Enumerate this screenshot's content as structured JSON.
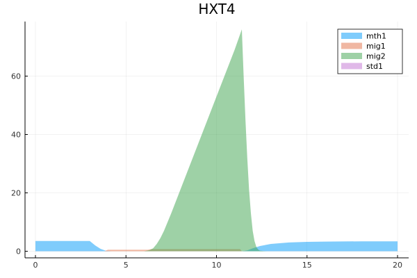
{
  "chart_data": {
    "type": "area",
    "title": "HXT4",
    "xlabel": "",
    "ylabel": "",
    "xlim": [
      0,
      20
    ],
    "ylim": [
      -1,
      78
    ],
    "xticks": [
      0,
      5,
      10,
      15,
      20
    ],
    "yticks": [
      0,
      20,
      40,
      60
    ],
    "grid": true,
    "legend_position": "top-right",
    "series": [
      {
        "name": "mth1",
        "color": "#009AF9",
        "x": [
          0,
          3.0,
          3.1,
          3.3,
          3.6,
          3.9,
          4.2,
          11.4,
          11.7,
          12.0,
          12.4,
          13.0,
          14.0,
          15.0,
          16.0,
          17.0,
          18.0,
          20.0
        ],
        "y": [
          3.5,
          3.5,
          3.0,
          2.0,
          0.8,
          0.15,
          0.0,
          0.0,
          0.3,
          1.0,
          1.8,
          2.5,
          3.0,
          3.2,
          3.3,
          3.35,
          3.4,
          3.4
        ]
      },
      {
        "name": "mig1",
        "color": "#E26F46",
        "x": [
          0,
          3.8,
          4.0,
          6.2,
          6.4,
          11.3,
          11.4,
          20.0
        ],
        "y": [
          0,
          0,
          0.5,
          0.5,
          0.7,
          0.7,
          0,
          0
        ]
      },
      {
        "name": "mig2",
        "color": "#3DA44D",
        "x": [
          0,
          6.0,
          6.3,
          6.5,
          6.7,
          6.9,
          7.1,
          7.3,
          7.5,
          8.0,
          9.0,
          10.0,
          11.0,
          11.4,
          11.5,
          11.6,
          11.7,
          11.8,
          11.9,
          12.0,
          12.1,
          12.2,
          12.3,
          12.4,
          12.6,
          12.8,
          13.0,
          20.0
        ],
        "y": [
          0,
          0,
          0.4,
          1.0,
          2.5,
          4.5,
          7.0,
          10.0,
          13.0,
          21.0,
          37.0,
          53.0,
          69.0,
          76.0,
          60.0,
          45.0,
          32.0,
          21.0,
          13.0,
          7.0,
          3.5,
          1.5,
          0.6,
          0.2,
          0.05,
          0.0,
          0.0,
          0.0
        ]
      },
      {
        "name": "std1",
        "color": "#C271D2",
        "x": [
          0,
          20
        ],
        "y": [
          0,
          0
        ]
      }
    ]
  }
}
